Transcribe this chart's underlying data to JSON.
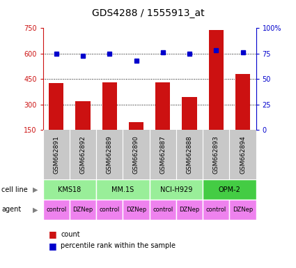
{
  "title": "GDS4288 / 1555913_at",
  "samples": [
    "GSM662891",
    "GSM662892",
    "GSM662889",
    "GSM662890",
    "GSM662887",
    "GSM662888",
    "GSM662893",
    "GSM662894"
  ],
  "counts": [
    425,
    320,
    430,
    195,
    430,
    345,
    740,
    480
  ],
  "percentiles": [
    75,
    73,
    75,
    68,
    76,
    75,
    78,
    76
  ],
  "cell_lines": [
    {
      "name": "KMS18",
      "start": 0,
      "end": 2,
      "color": "#99EE99"
    },
    {
      "name": "MM.1S",
      "start": 2,
      "end": 4,
      "color": "#99EE99"
    },
    {
      "name": "NCI-H929",
      "start": 4,
      "end": 6,
      "color": "#99EE99"
    },
    {
      "name": "OPM-2",
      "start": 6,
      "end": 8,
      "color": "#44CC44"
    }
  ],
  "agents": [
    "control",
    "DZNep",
    "control",
    "DZNep",
    "control",
    "DZNep",
    "control",
    "DZNep"
  ],
  "bar_color": "#CC1111",
  "dot_color": "#0000CC",
  "ylim_left": [
    150,
    750
  ],
  "ylim_right": [
    0,
    100
  ],
  "yticks_left": [
    150,
    300,
    450,
    600,
    750
  ],
  "yticks_right": [
    0,
    25,
    50,
    75,
    100
  ],
  "grid_values": [
    300,
    450,
    600
  ],
  "bar_width": 0.55,
  "title_fontsize": 10,
  "sample_bg": "#C8C8C8",
  "agent_color": "#EE82EE"
}
